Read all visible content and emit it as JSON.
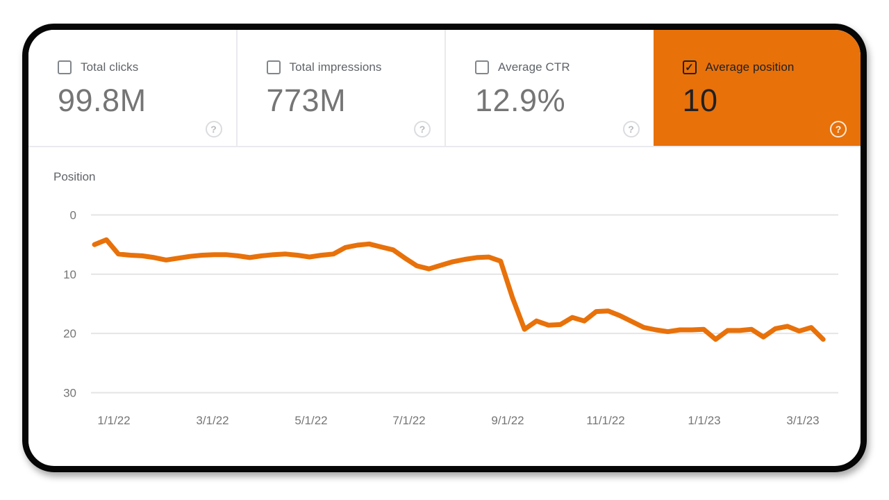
{
  "panel": {
    "name": "Search performance panel"
  },
  "icons": {
    "check": "✓",
    "help": "?"
  },
  "colors": {
    "accent_orange": "#E8710A",
    "selected_text": "#202124",
    "card_label_gray": "#5F6368",
    "card_value_gray": "#757575",
    "gridline_gray": "#E4E4E4",
    "axis_text_gray": "#757575",
    "separator_gray": "#E8EAED",
    "frame_black": "#060606"
  },
  "cards": [
    {
      "label": "Total clicks",
      "value": "99.8M",
      "checked": false
    },
    {
      "label": "Total impressions",
      "value": "773M",
      "checked": false
    },
    {
      "label": "Average CTR",
      "value": "12.9%",
      "checked": false
    },
    {
      "label": "Average position",
      "value": "10",
      "checked": true
    }
  ],
  "chart_data": {
    "type": "line",
    "title": "Position",
    "xlabel": "",
    "ylabel": "Position",
    "y_axis_inverted": true,
    "ylim": [
      0,
      30
    ],
    "y_ticks": [
      0,
      10,
      20,
      30
    ],
    "grid": "horizontal",
    "legend_position": "none",
    "x_tick_labels": [
      "1/1/22",
      "3/1/22",
      "5/1/22",
      "7/1/22",
      "9/1/22",
      "11/1/22",
      "1/1/23",
      "3/1/23"
    ],
    "x_frequency": "weekly",
    "series": [
      {
        "name": "Average position",
        "color": "#E8710A",
        "values": [
          5.0,
          4.2,
          6.6,
          6.8,
          6.9,
          7.2,
          7.6,
          7.3,
          7.0,
          6.8,
          6.7,
          6.7,
          6.9,
          7.2,
          6.9,
          6.7,
          6.6,
          6.8,
          7.1,
          6.8,
          6.6,
          5.5,
          5.1,
          4.9,
          5.4,
          5.9,
          7.3,
          8.6,
          9.1,
          8.5,
          7.9,
          7.5,
          7.2,
          7.1,
          7.8,
          14.0,
          19.3,
          17.9,
          18.6,
          18.5,
          17.3,
          17.9,
          16.3,
          16.2,
          17.0,
          18.0,
          19.0,
          19.4,
          19.7,
          19.4,
          19.4,
          19.3,
          21.0,
          19.5,
          19.5,
          19.3,
          20.6,
          19.2,
          18.8,
          19.6,
          19.0,
          21.0
        ]
      }
    ]
  }
}
